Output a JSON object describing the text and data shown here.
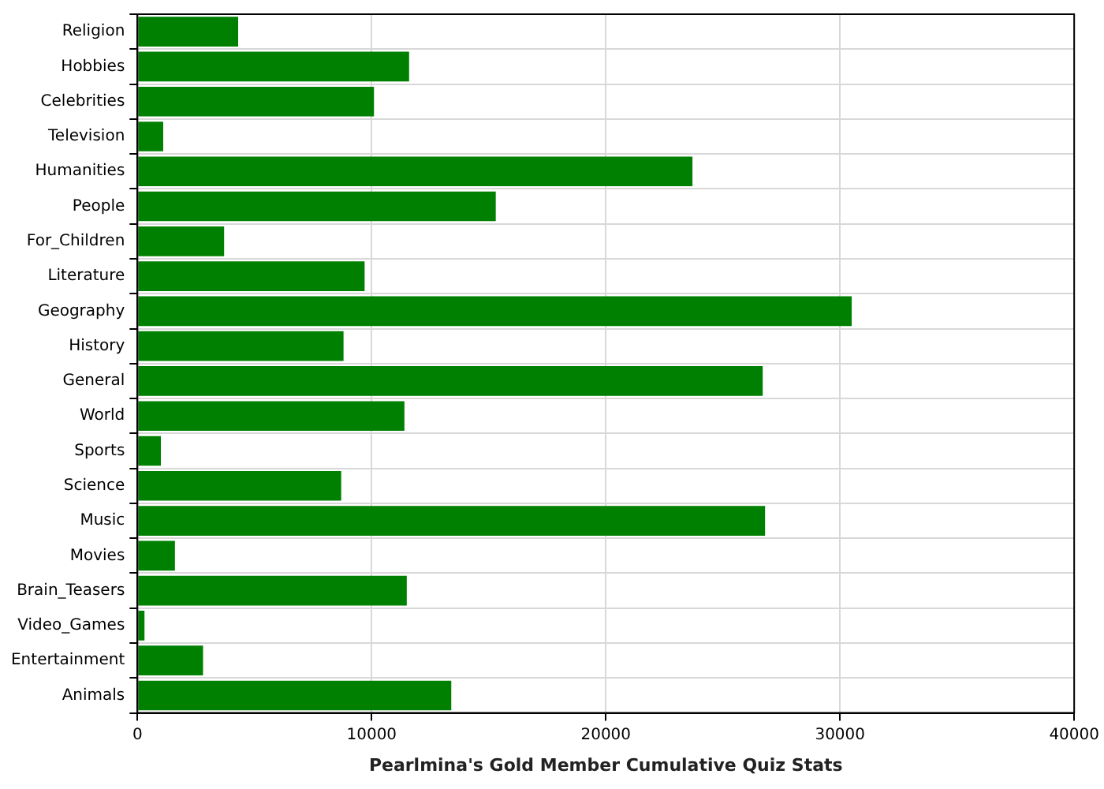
{
  "chart_data": {
    "type": "bar",
    "orientation": "horizontal",
    "xlabel": "Pearlmina's Gold Member Cumulative Quiz Stats",
    "categories": [
      "Religion",
      "Hobbies",
      "Celebrities",
      "Television",
      "Humanities",
      "People",
      "For_Children",
      "Literature",
      "Geography",
      "History",
      "General",
      "World",
      "Sports",
      "Science",
      "Music",
      "Movies",
      "Brain_Teasers",
      "Video_Games",
      "Entertainment",
      "Animals"
    ],
    "values": [
      4300,
      11600,
      10100,
      1100,
      23700,
      15300,
      3700,
      9700,
      30500,
      8800,
      26700,
      11400,
      1000,
      8700,
      26800,
      1600,
      11500,
      300,
      2800,
      13400
    ],
    "color": "#008000",
    "xlim": [
      0,
      40000
    ],
    "xticks": [
      0,
      10000,
      20000,
      30000,
      40000
    ],
    "grid": true
  }
}
